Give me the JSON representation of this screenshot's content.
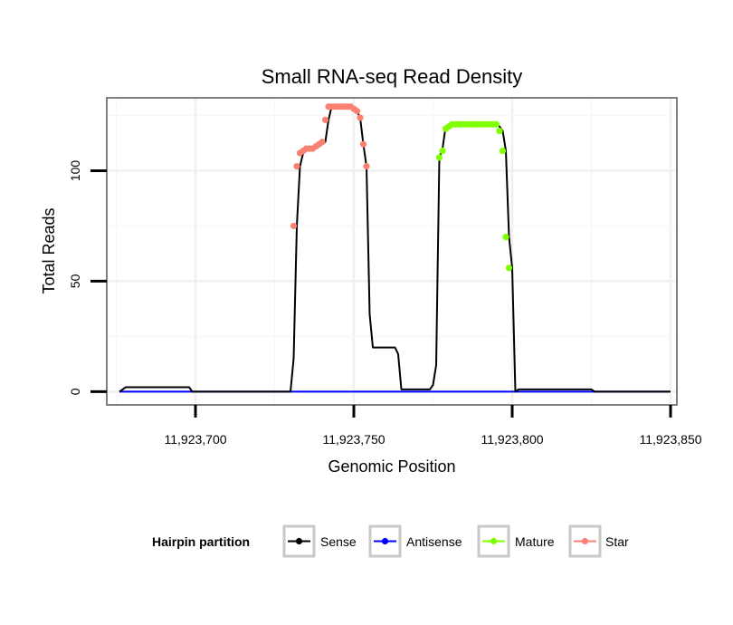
{
  "chart_data": {
    "type": "line",
    "title": "Small RNA-seq Read Density",
    "xlabel": "Genomic Position",
    "ylabel": "Total Reads",
    "xlim": [
      11923672,
      11923852
    ],
    "ylim": [
      -6,
      133
    ],
    "x_ticks": [
      {
        "value": 11923700,
        "label": "11,923,700"
      },
      {
        "value": 11923750,
        "label": "11,923,750"
      },
      {
        "value": 11923800,
        "label": "11,923,800"
      },
      {
        "value": 11923850,
        "label": "11,923,850"
      }
    ],
    "y_ticks": [
      {
        "value": 0,
        "label": "0"
      },
      {
        "value": 50,
        "label": "50"
      },
      {
        "value": 100,
        "label": "100"
      }
    ],
    "grid": true,
    "legend": {
      "title": "Hairpin partition",
      "position": "bottom",
      "entries": [
        {
          "name": "Sense",
          "color": "#000000"
        },
        {
          "name": "Antisense",
          "color": "#0000ff"
        },
        {
          "name": "Mature",
          "color": "#7fff00"
        },
        {
          "name": "Star",
          "color": "#fa8072"
        }
      ]
    },
    "series": [
      {
        "name": "Sense",
        "color": "#000000",
        "x": [
          11923676,
          11923677,
          11923678,
          11923698,
          11923699,
          11923730,
          11923731,
          11923732,
          11923733,
          11923734,
          11923735,
          11923736,
          11923737,
          11923738,
          11923739,
          11923740,
          11923741,
          11923742,
          11923743,
          11923744,
          11923745,
          11923746,
          11923747,
          11923748,
          11923749,
          11923750,
          11923751,
          11923752,
          11923753,
          11923754,
          11923755,
          11923756,
          11923757,
          11923763,
          11923764,
          11923765,
          11923774,
          11923775,
          11923776,
          11923777,
          11923778,
          11923779,
          11923780,
          11923781,
          11923795,
          11923796,
          11923797,
          11923798,
          11923799,
          11923800,
          11923801,
          11923802,
          11923825,
          11923826,
          11923850
        ],
        "values": [
          0,
          1,
          2,
          2,
          0,
          0,
          15,
          75,
          102,
          108,
          109,
          110,
          110,
          110,
          111,
          112,
          113,
          123,
          129,
          129,
          129,
          129,
          129,
          129,
          129,
          128,
          127,
          124,
          112,
          102,
          35,
          20,
          20,
          20,
          17,
          1,
          1,
          3,
          12,
          106,
          110,
          120,
          121,
          121,
          121,
          120,
          118,
          109,
          70,
          56,
          0,
          1,
          1,
          0,
          0
        ]
      },
      {
        "name": "Antisense",
        "color": "#0000ff",
        "x": [
          11923676,
          11923850
        ],
        "values": [
          0,
          0
        ]
      },
      {
        "name": "Mature",
        "color": "#7fff00",
        "x": [
          11923777,
          11923778,
          11923779,
          11923780,
          11923781,
          11923782,
          11923783,
          11923784,
          11923785,
          11923786,
          11923787,
          11923788,
          11923789,
          11923790,
          11923791,
          11923792,
          11923793,
          11923794,
          11923795,
          11923796,
          11923797,
          11923798,
          11923799
        ],
        "values": [
          106,
          109,
          119,
          120,
          121,
          121,
          121,
          121,
          121,
          121,
          121,
          121,
          121,
          121,
          121,
          121,
          121,
          121,
          121,
          118,
          109,
          70,
          56
        ]
      },
      {
        "name": "Star",
        "color": "#fa8072",
        "x": [
          11923731,
          11923732,
          11923733,
          11923734,
          11923735,
          11923736,
          11923737,
          11923738,
          11923739,
          11923740,
          11923741,
          11923742,
          11923743,
          11923744,
          11923745,
          11923746,
          11923747,
          11923748,
          11923749,
          11923750,
          11923751,
          11923752,
          11923753,
          11923754
        ],
        "values": [
          75,
          102,
          108,
          109,
          110,
          110,
          110,
          111,
          112,
          113,
          123,
          129,
          129,
          129,
          129,
          129,
          129,
          129,
          129,
          128,
          127,
          124,
          112,
          102
        ]
      }
    ]
  }
}
